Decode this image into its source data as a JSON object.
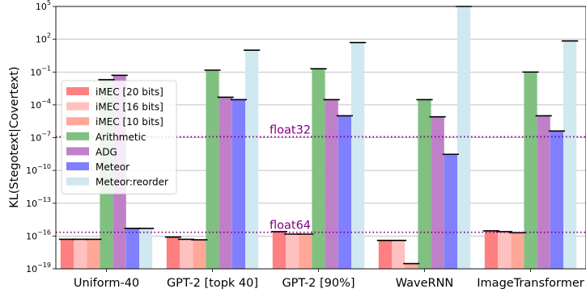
{
  "chart_data": {
    "type": "bar",
    "log_scale_y": true,
    "ylabel": "KL(Stegotext|Covertext)",
    "ylim": [
      1e-19,
      100000.0
    ],
    "yticks": [
      {
        "value": 100000.0,
        "base": "10",
        "exp": "5"
      },
      {
        "value": 100.0,
        "base": "10",
        "exp": "2"
      },
      {
        "value": 0.1,
        "base": "10",
        "exp": "−1"
      },
      {
        "value": 0.0001,
        "base": "10",
        "exp": "−4"
      },
      {
        "value": 1e-07,
        "base": "10",
        "exp": "−7"
      },
      {
        "value": 1e-10,
        "base": "10",
        "exp": "−10"
      },
      {
        "value": 1e-13,
        "base": "10",
        "exp": "−13"
      },
      {
        "value": 1e-16,
        "base": "10",
        "exp": "−16"
      },
      {
        "value": 1e-19,
        "base": "10",
        "exp": "−19"
      }
    ],
    "grid": "horizontal",
    "legend_position": "left",
    "categories": [
      "Uniform-40",
      "GPT-2 [topk 40]",
      "GPT-2 [90%]",
      "WaveRNN",
      "ImageTransformer"
    ],
    "series": [
      {
        "name": "iMEC [20 bits]",
        "color": "#ff8080",
        "values": [
          5e-17,
          8e-17,
          2.5e-16,
          4e-17,
          3e-16
        ]
      },
      {
        "name": "iMEC [16 bits]",
        "color": "#ffc0c0",
        "values": [
          5e-17,
          5e-17,
          1.5e-16,
          4e-17,
          2.5e-16
        ]
      },
      {
        "name": "iMEC [10 bits]",
        "color": "#ffa898",
        "values": [
          5e-17,
          4.5e-17,
          1.5e-16,
          3e-19,
          2e-16
        ]
      },
      {
        "name": "Arithmetic",
        "color": "#80c080",
        "values": [
          0.02,
          0.15,
          0.2,
          0.0003,
          0.1
        ]
      },
      {
        "name": "ADG",
        "color": "#c080c8",
        "values": [
          0.05,
          0.0005,
          0.0003,
          8e-06,
          1e-05
        ]
      },
      {
        "name": "Meteor",
        "color": "#8080ff",
        "values": [
          5e-16,
          0.0003,
          1e-05,
          3e-09,
          4e-07
        ]
      },
      {
        "name": "Meteor:reorder",
        "color": "#d0e8f0",
        "values": [
          5e-16,
          10,
          50,
          100000.0,
          70
        ]
      }
    ],
    "reference_lines": [
      {
        "label": "float32",
        "value": 1.2e-07,
        "color": "#800080"
      },
      {
        "label": "float64",
        "value": 2.2e-16,
        "color": "#800080"
      }
    ]
  }
}
